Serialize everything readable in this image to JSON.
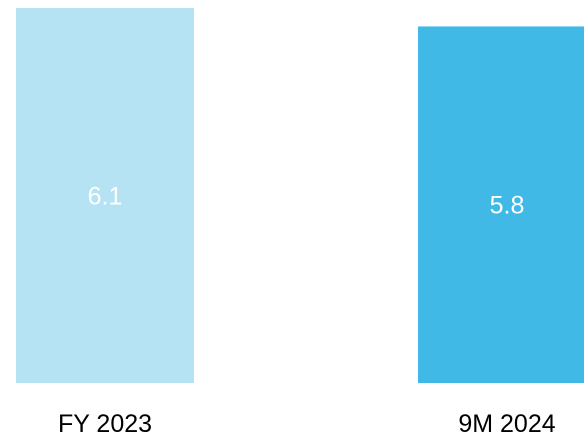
{
  "chart_data": {
    "type": "bar",
    "categories": [
      "FY 2023",
      "9M 2024"
    ],
    "values": [
      6.1,
      5.8
    ],
    "value_labels": [
      "6.1",
      "5.8"
    ],
    "colors": [
      "#b6e3f4",
      "#41b9e6"
    ],
    "value_label_color": "#ffffff",
    "ylim": [
      0,
      6.1
    ],
    "grid": false,
    "title": "",
    "xlabel": "",
    "ylabel": ""
  }
}
